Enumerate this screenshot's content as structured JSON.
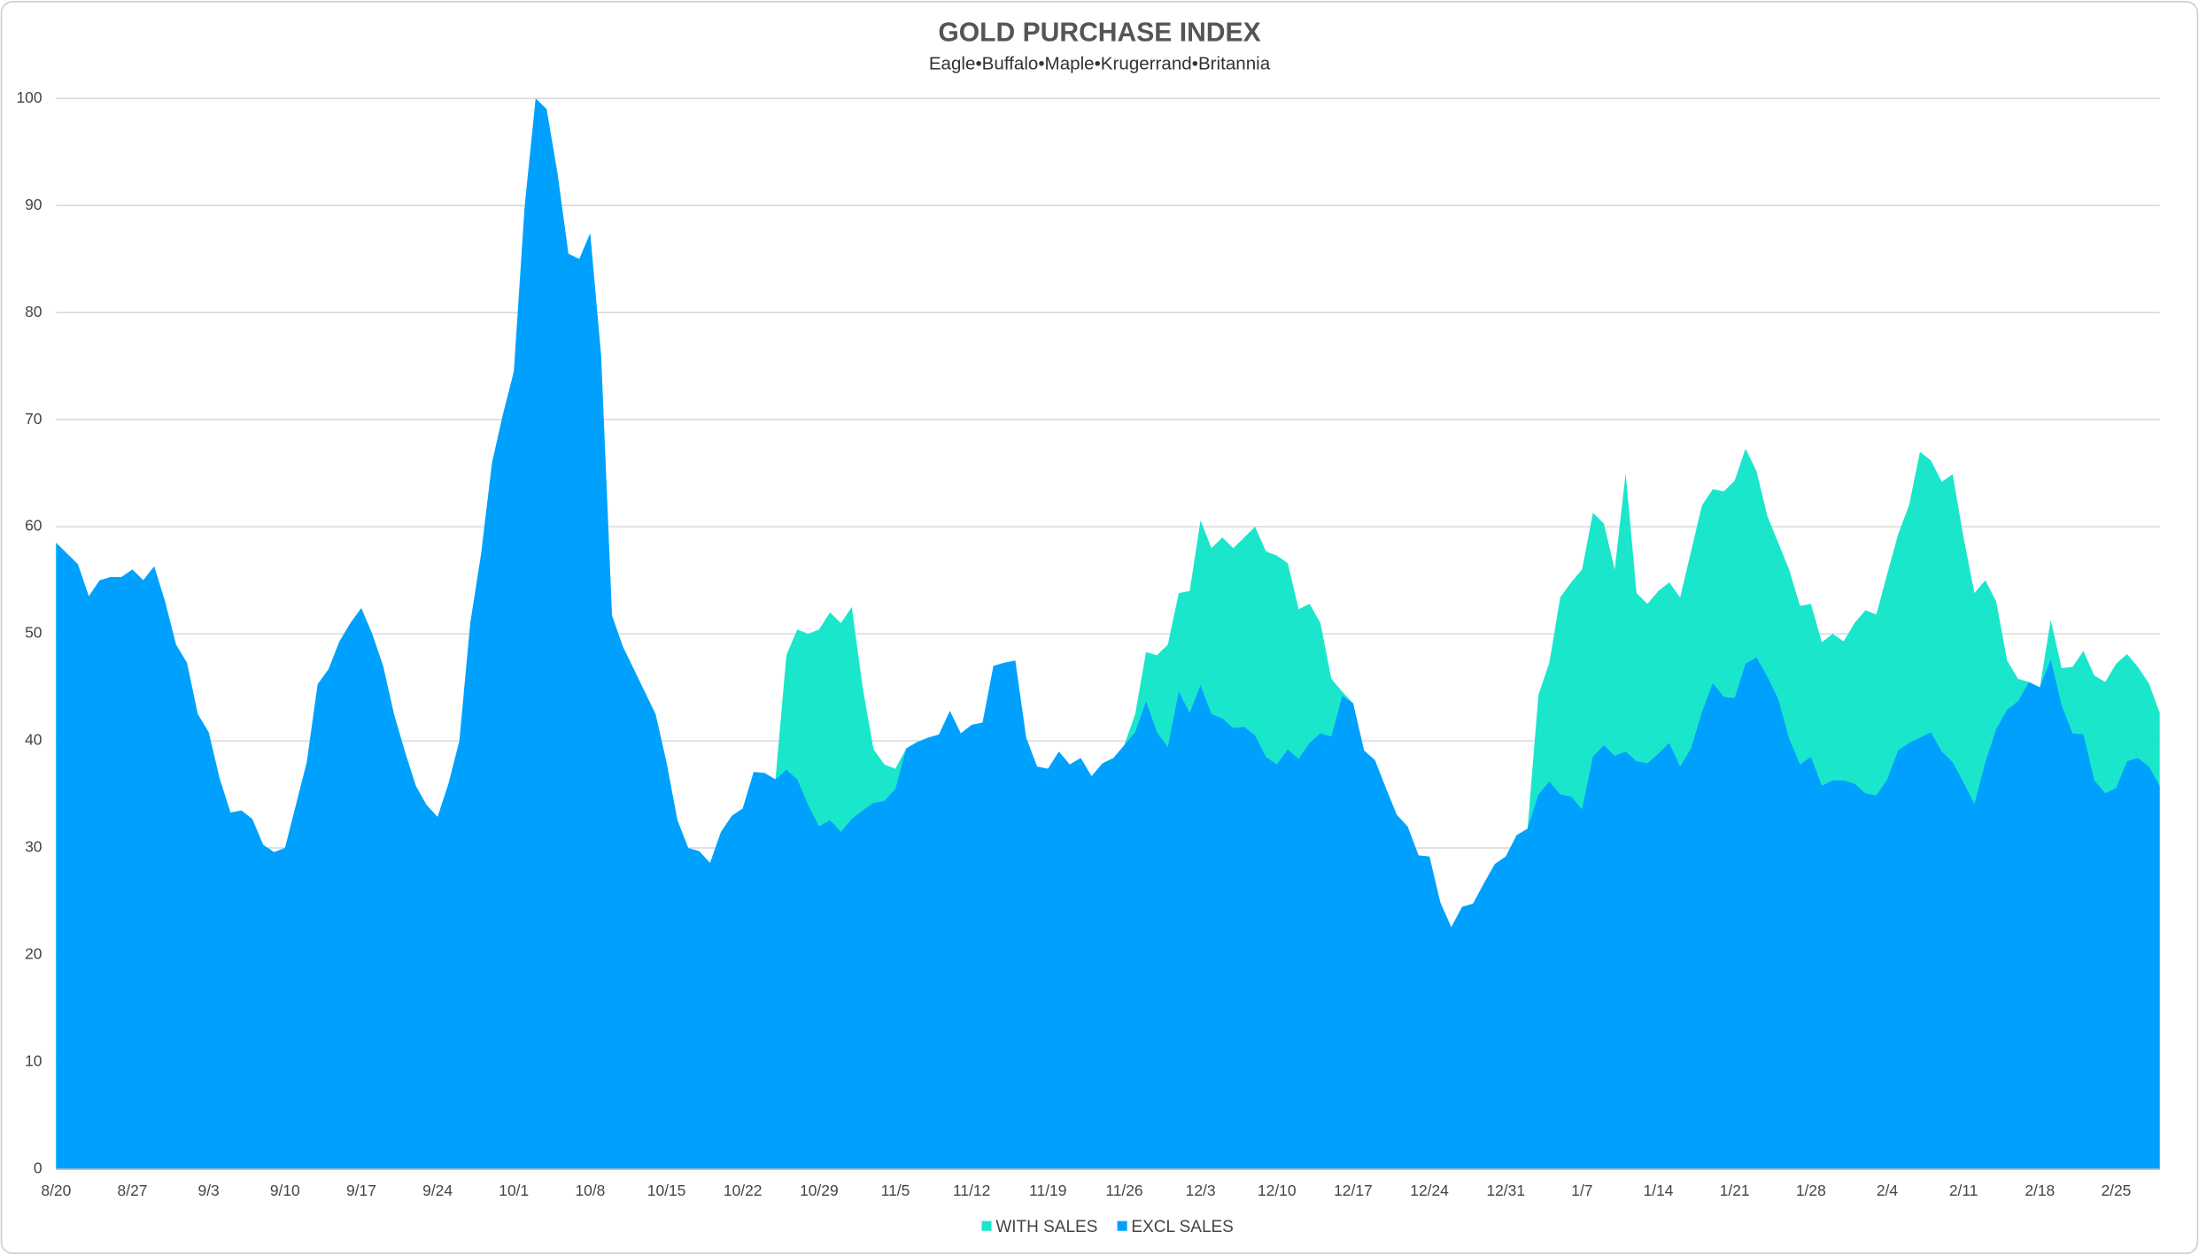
{
  "chart_data": {
    "type": "area",
    "title": "GOLD PURCHASE INDEX",
    "subtitle": "Eagle•Buffalo•Maple•Krugerrand•Britannia",
    "categories": [
      "8/20",
      null,
      null,
      null,
      null,
      null,
      null,
      "8/27",
      null,
      null,
      null,
      null,
      null,
      null,
      "9/3",
      null,
      null,
      null,
      null,
      null,
      null,
      "9/10",
      null,
      null,
      null,
      null,
      null,
      null,
      "9/17",
      null,
      null,
      null,
      null,
      null,
      null,
      "9/24",
      null,
      null,
      null,
      null,
      null,
      null,
      "10/1",
      null,
      null,
      null,
      null,
      null,
      null,
      "10/8",
      null,
      null,
      null,
      null,
      null,
      null,
      "10/15",
      null,
      null,
      null,
      null,
      null,
      null,
      "10/22",
      null,
      null,
      null,
      null,
      null,
      null,
      "10/29",
      null,
      null,
      null,
      null,
      null,
      null,
      "11/5",
      null,
      null,
      null,
      null,
      null,
      null,
      "11/12",
      null,
      null,
      null,
      null,
      null,
      null,
      "11/19",
      null,
      null,
      null,
      null,
      null,
      null,
      "11/26",
      null,
      null,
      null,
      null,
      null,
      null,
      "12/3",
      null,
      null,
      null,
      null,
      null,
      null,
      "12/10",
      null,
      null,
      null,
      null,
      null,
      null,
      "12/17",
      null,
      null,
      null,
      null,
      null,
      null,
      "12/24",
      null,
      null,
      null,
      null,
      null,
      null,
      "12/31",
      null,
      null,
      null,
      null,
      null,
      null,
      "1/7",
      null,
      null,
      null,
      null,
      null,
      null,
      "1/14",
      null,
      null,
      null,
      null,
      null,
      null,
      "1/21",
      null,
      null,
      null,
      null,
      null,
      null,
      "1/28",
      null,
      null,
      null,
      null,
      null,
      null,
      "2/4",
      null,
      null,
      null,
      null,
      null,
      null,
      "2/11",
      null,
      null,
      null,
      null,
      null,
      null,
      "2/18",
      null,
      null,
      null,
      null,
      null,
      null,
      "2/25",
      null,
      null,
      null,
      null
    ],
    "series": [
      {
        "name": "WITH SALES",
        "color": "#1ae6cc",
        "values": [
          58.5,
          57.5,
          56.5,
          53.5,
          55,
          55.3,
          55.3,
          56,
          55,
          56.3,
          53,
          49,
          47.3,
          42.5,
          40.8,
          36.5,
          33.3,
          33.5,
          32.7,
          30.3,
          29.6,
          30,
          34,
          38,
          45.3,
          46.7,
          49.3,
          51,
          52.4,
          50,
          47,
          42.5,
          39,
          35.8,
          34,
          32.9,
          36,
          40,
          51,
          57.5,
          66,
          70.5,
          74.5,
          90,
          100,
          99,
          93,
          85.5,
          85,
          87.4,
          76,
          51.7,
          48.8,
          46.7,
          44.6,
          42.5,
          38,
          32.6,
          30,
          29.7,
          28.6,
          31.5,
          33,
          33.7,
          37.1,
          37,
          36.4,
          48,
          50.4,
          50,
          50.4,
          52,
          51,
          52.5,
          45,
          39.2,
          37.8,
          37.4,
          39.3,
          39.9,
          40.3,
          40.6,
          42.8,
          40.7,
          41.5,
          41.7,
          47,
          47.3,
          47.5,
          40.3,
          37.6,
          37.4,
          39,
          37.8,
          38.4,
          36.7,
          37.9,
          38.4,
          39.6,
          42.5,
          48.3,
          48,
          49,
          53.8,
          54,
          60.6,
          58,
          59,
          58,
          59,
          60,
          57.7,
          57.3,
          56.6,
          52.3,
          52.8,
          51,
          45.8,
          44.6,
          43.5,
          39.1,
          38.2,
          35.6,
          33.1,
          32,
          29.3,
          29.2,
          24.9,
          22.6,
          24.5,
          24.8,
          26.7,
          28.5,
          29.2,
          31.2,
          31.8,
          44.3,
          47.3,
          53.4,
          54.8,
          56,
          61.3,
          60.3,
          56,
          65,
          53.8,
          52.8,
          54,
          54.8,
          53.4,
          57.7,
          62,
          63.5,
          63.3,
          64.3,
          67.3,
          65.2,
          61,
          58.5,
          56,
          52.6,
          52.8,
          49.2,
          50,
          49.3,
          51,
          52.2,
          51.8,
          55.6,
          59.3,
          62,
          67,
          66.2,
          64.2,
          64.9,
          59,
          53.8,
          55,
          53,
          47.5,
          45.8,
          45.5,
          45,
          51.3,
          46.8,
          46.9,
          48.4,
          46.1,
          45.5,
          47.2,
          48.1,
          46.9,
          45.4,
          42.6
        ]
      },
      {
        "name": "EXCL SALES",
        "color": "#00a0ff",
        "values": [
          58.5,
          57.5,
          56.5,
          53.5,
          55,
          55.3,
          55.3,
          56,
          55,
          56.3,
          53,
          49,
          47.3,
          42.5,
          40.8,
          36.5,
          33.3,
          33.5,
          32.7,
          30.3,
          29.6,
          30,
          34,
          38,
          45.3,
          46.7,
          49.3,
          51,
          52.4,
          50,
          47,
          42.5,
          39,
          35.8,
          34,
          32.9,
          36,
          40,
          51,
          57.5,
          66,
          70.5,
          74.5,
          90,
          100,
          99,
          93,
          85.5,
          85,
          87.4,
          76,
          51.7,
          48.8,
          46.7,
          44.6,
          42.5,
          38,
          32.6,
          30,
          29.7,
          28.6,
          31.5,
          33,
          33.7,
          37.1,
          37,
          36.4,
          37.3,
          36.4,
          34,
          32,
          32.6,
          31.5,
          32.7,
          33.5,
          34.2,
          34.4,
          35.5,
          39.3,
          39.9,
          40.3,
          40.6,
          42.8,
          40.7,
          41.5,
          41.7,
          47,
          47.3,
          47.5,
          40.3,
          37.6,
          37.4,
          39,
          37.8,
          38.4,
          36.7,
          37.9,
          38.4,
          39.6,
          40.8,
          43.7,
          40.8,
          39.4,
          44.6,
          42.6,
          45.2,
          42.5,
          42.1,
          41.2,
          41.3,
          40.5,
          38.5,
          37.8,
          39.2,
          38.3,
          39.8,
          40.7,
          40.4,
          44.2,
          43.5,
          39.1,
          38.2,
          35.6,
          33.1,
          32,
          29.3,
          29.2,
          24.9,
          22.6,
          24.5,
          24.8,
          26.7,
          28.5,
          29.2,
          31.2,
          31.8,
          35,
          36.2,
          35,
          34.8,
          33.6,
          38.5,
          39.6,
          38.6,
          39,
          38.1,
          37.9,
          38.8,
          39.8,
          37.6,
          39.3,
          42.7,
          45.4,
          44.1,
          44,
          47.2,
          47.8,
          46,
          43.9,
          40.2,
          37.8,
          38.5,
          35.8,
          36.3,
          36.3,
          36,
          35.1,
          34.9,
          36.4,
          39.1,
          39.8,
          40.3,
          40.8,
          39,
          38,
          36.1,
          34.1,
          38,
          41.1,
          42.9,
          43.7,
          45.5,
          45,
          47.6,
          43.3,
          40.7,
          40.6,
          36.3,
          35.1,
          35.6,
          38.1,
          38.4,
          37.6,
          35.8
        ]
      }
    ],
    "ylim": [
      0,
      100
    ],
    "yticks": [
      0,
      10,
      20,
      30,
      40,
      50,
      60,
      70,
      80,
      90,
      100
    ],
    "grid": true,
    "legend": "bottom"
  }
}
